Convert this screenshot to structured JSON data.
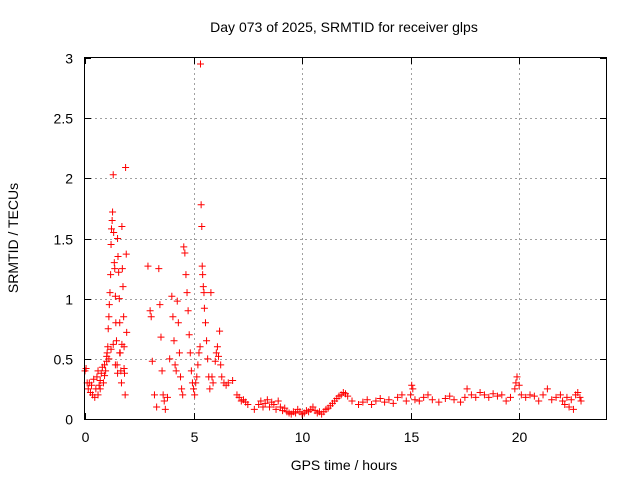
{
  "chart_data": {
    "type": "scatter",
    "title": "Day 073 of 2025, SRMTID for receiver glps",
    "xlabel": "GPS time / hours",
    "ylabel": "SRMTID / TECUs",
    "xlim": [
      0,
      24
    ],
    "ylim": [
      0,
      3
    ],
    "xticks": [
      0,
      5,
      10,
      15,
      20
    ],
    "xtick_labels": [
      "0",
      "5",
      "10",
      "15",
      "20"
    ],
    "yticks": [
      0,
      0.5,
      1,
      1.5,
      2,
      2.5,
      3
    ],
    "ytick_labels": [
      "0",
      "0.5",
      "1",
      "1.5",
      "2",
      "2.5",
      "3"
    ],
    "grid": true,
    "marker": "+",
    "color": "#ff0000",
    "series": [
      {
        "name": "SRMTID",
        "points": [
          [
            0.0,
            0.4
          ],
          [
            0.05,
            0.42
          ],
          [
            0.1,
            0.3
          ],
          [
            0.15,
            0.25
          ],
          [
            0.2,
            0.3
          ],
          [
            0.25,
            0.22
          ],
          [
            0.3,
            0.28
          ],
          [
            0.35,
            0.2
          ],
          [
            0.4,
            0.33
          ],
          [
            0.45,
            0.18
          ],
          [
            0.5,
            0.25
          ],
          [
            0.55,
            0.35
          ],
          [
            0.6,
            0.4
          ],
          [
            0.65,
            0.28
          ],
          [
            0.7,
            0.32
          ],
          [
            0.75,
            0.38
          ],
          [
            0.8,
            0.43
          ],
          [
            0.85,
            0.3
          ],
          [
            0.9,
            0.36
          ],
          [
            0.95,
            0.4
          ],
          [
            1.0,
            0.48
          ],
          [
            1.02,
            0.55
          ],
          [
            1.05,
            0.6
          ],
          [
            1.07,
            0.75
          ],
          [
            1.1,
            0.85
          ],
          [
            1.12,
            0.95
          ],
          [
            1.15,
            1.05
          ],
          [
            1.18,
            1.2
          ],
          [
            1.2,
            1.45
          ],
          [
            1.22,
            1.58
          ],
          [
            1.25,
            1.65
          ],
          [
            1.27,
            1.72
          ],
          [
            1.3,
            2.03
          ],
          [
            1.32,
            1.55
          ],
          [
            1.35,
            1.3
          ],
          [
            1.37,
            1.25
          ],
          [
            1.4,
            1.02
          ],
          [
            1.42,
            0.8
          ],
          [
            1.45,
            0.65
          ],
          [
            1.48,
            0.45
          ],
          [
            1.5,
            1.5
          ],
          [
            1.52,
            1.35
          ],
          [
            1.55,
            1.22
          ],
          [
            1.58,
            1.0
          ],
          [
            1.6,
            0.8
          ],
          [
            1.62,
            0.55
          ],
          [
            1.65,
            0.4
          ],
          [
            1.68,
            0.3
          ],
          [
            1.7,
            1.6
          ],
          [
            1.72,
            1.25
          ],
          [
            1.75,
            1.1
          ],
          [
            1.78,
            0.85
          ],
          [
            1.8,
            0.6
          ],
          [
            1.82,
            0.38
          ],
          [
            1.85,
            0.2
          ],
          [
            1.87,
            2.09
          ],
          [
            1.9,
            1.37
          ],
          [
            1.92,
            0.72
          ],
          [
            0.6,
            0.2
          ],
          [
            0.7,
            0.25
          ],
          [
            0.9,
            0.45
          ],
          [
            1.0,
            0.52
          ],
          [
            1.1,
            0.5
          ],
          [
            1.2,
            0.58
          ],
          [
            1.3,
            0.62
          ],
          [
            1.4,
            0.45
          ],
          [
            1.5,
            0.38
          ],
          [
            1.6,
            0.55
          ],
          [
            1.7,
            0.62
          ],
          [
            1.8,
            0.42
          ],
          [
            2.9,
            1.27
          ],
          [
            3.0,
            0.9
          ],
          [
            3.05,
            0.85
          ],
          [
            3.1,
            0.48
          ],
          [
            3.2,
            0.2
          ],
          [
            3.3,
            0.1
          ],
          [
            3.4,
            1.25
          ],
          [
            3.45,
            0.95
          ],
          [
            3.5,
            0.68
          ],
          [
            3.55,
            0.4
          ],
          [
            3.6,
            0.2
          ],
          [
            3.65,
            0.15
          ],
          [
            3.7,
            0.08
          ],
          [
            3.8,
            0.18
          ],
          [
            3.9,
            0.5
          ],
          [
            4.0,
            1.02
          ],
          [
            4.05,
            0.85
          ],
          [
            4.1,
            0.65
          ],
          [
            4.15,
            0.45
          ],
          [
            4.2,
            0.4
          ],
          [
            4.25,
            0.98
          ],
          [
            4.3,
            0.8
          ],
          [
            4.35,
            0.55
          ],
          [
            4.4,
            0.35
          ],
          [
            4.45,
            0.25
          ],
          [
            4.5,
            0.2
          ],
          [
            4.55,
            1.43
          ],
          [
            4.6,
            1.38
          ],
          [
            4.65,
            1.2
          ],
          [
            4.7,
            1.05
          ],
          [
            4.75,
            0.9
          ],
          [
            4.8,
            0.7
          ],
          [
            4.85,
            0.55
          ],
          [
            4.9,
            0.4
          ],
          [
            4.95,
            0.3
          ],
          [
            5.0,
            0.25
          ],
          [
            5.05,
            0.2
          ],
          [
            5.1,
            0.3
          ],
          [
            5.15,
            0.35
          ],
          [
            5.2,
            0.45
          ],
          [
            5.25,
            0.55
          ],
          [
            5.3,
            0.6
          ],
          [
            5.32,
            2.95
          ],
          [
            5.35,
            1.78
          ],
          [
            5.38,
            1.6
          ],
          [
            5.4,
            1.27
          ],
          [
            5.42,
            1.2
          ],
          [
            5.45,
            1.1
          ],
          [
            5.48,
            1.05
          ],
          [
            5.5,
            0.92
          ],
          [
            5.55,
            0.8
          ],
          [
            5.6,
            0.65
          ],
          [
            5.65,
            0.5
          ],
          [
            5.7,
            0.35
          ],
          [
            5.75,
            0.25
          ],
          [
            5.8,
            1.05
          ],
          [
            5.85,
            0.35
          ],
          [
            5.9,
            0.3
          ],
          [
            6.0,
            0.48
          ],
          [
            6.05,
            0.55
          ],
          [
            6.1,
            0.6
          ],
          [
            6.15,
            0.52
          ],
          [
            6.2,
            0.73
          ],
          [
            6.25,
            0.45
          ],
          [
            6.3,
            0.35
          ],
          [
            6.4,
            0.3
          ],
          [
            6.5,
            0.28
          ],
          [
            6.6,
            0.3
          ],
          [
            6.8,
            0.32
          ],
          [
            7.0,
            0.2
          ],
          [
            7.1,
            0.18
          ],
          [
            7.2,
            0.15
          ],
          [
            7.3,
            0.16
          ],
          [
            7.4,
            0.14
          ],
          [
            7.5,
            0.12
          ],
          [
            7.8,
            0.08
          ],
          [
            8.0,
            0.12
          ],
          [
            8.1,
            0.15
          ],
          [
            8.2,
            0.1
          ],
          [
            8.3,
            0.13
          ],
          [
            8.4,
            0.16
          ],
          [
            8.5,
            0.1
          ],
          [
            8.6,
            0.14
          ],
          [
            8.7,
            0.12
          ],
          [
            8.8,
            0.08
          ],
          [
            8.9,
            0.15
          ],
          [
            9.0,
            0.1
          ],
          [
            9.1,
            0.07
          ],
          [
            9.2,
            0.09
          ],
          [
            9.3,
            0.06
          ],
          [
            9.4,
            0.05
          ],
          [
            9.5,
            0.04
          ],
          [
            9.6,
            0.06
          ],
          [
            9.7,
            0.05
          ],
          [
            9.8,
            0.08
          ],
          [
            9.9,
            0.06
          ],
          [
            10.0,
            0.04
          ],
          [
            10.1,
            0.05
          ],
          [
            10.2,
            0.07
          ],
          [
            10.3,
            0.06
          ],
          [
            10.4,
            0.08
          ],
          [
            10.5,
            0.1
          ],
          [
            10.6,
            0.07
          ],
          [
            10.7,
            0.05
          ],
          [
            10.8,
            0.06
          ],
          [
            10.9,
            0.04
          ],
          [
            11.0,
            0.06
          ],
          [
            11.1,
            0.08
          ],
          [
            11.2,
            0.09
          ],
          [
            11.3,
            0.11
          ],
          [
            11.4,
            0.13
          ],
          [
            11.5,
            0.15
          ],
          [
            11.6,
            0.17
          ],
          [
            11.7,
            0.19
          ],
          [
            11.8,
            0.2
          ],
          [
            11.9,
            0.22
          ],
          [
            12.0,
            0.21
          ],
          [
            12.1,
            0.19
          ],
          [
            12.3,
            0.15
          ],
          [
            12.6,
            0.12
          ],
          [
            12.8,
            0.14
          ],
          [
            13.0,
            0.16
          ],
          [
            13.2,
            0.12
          ],
          [
            13.4,
            0.15
          ],
          [
            13.6,
            0.17
          ],
          [
            13.8,
            0.14
          ],
          [
            14.0,
            0.16
          ],
          [
            14.2,
            0.13
          ],
          [
            14.4,
            0.18
          ],
          [
            14.6,
            0.2
          ],
          [
            14.8,
            0.15
          ],
          [
            15.0,
            0.2
          ],
          [
            15.05,
            0.28
          ],
          [
            15.1,
            0.25
          ],
          [
            15.2,
            0.16
          ],
          [
            15.4,
            0.15
          ],
          [
            15.6,
            0.18
          ],
          [
            15.8,
            0.2
          ],
          [
            16.0,
            0.16
          ],
          [
            16.3,
            0.14
          ],
          [
            16.6,
            0.17
          ],
          [
            16.8,
            0.19
          ],
          [
            17.0,
            0.16
          ],
          [
            17.3,
            0.14
          ],
          [
            17.5,
            0.18
          ],
          [
            17.6,
            0.25
          ],
          [
            17.8,
            0.2
          ],
          [
            18.0,
            0.18
          ],
          [
            18.2,
            0.22
          ],
          [
            18.4,
            0.2
          ],
          [
            18.6,
            0.18
          ],
          [
            18.8,
            0.21
          ],
          [
            19.0,
            0.19
          ],
          [
            19.2,
            0.2
          ],
          [
            19.4,
            0.15
          ],
          [
            19.6,
            0.18
          ],
          [
            19.8,
            0.25
          ],
          [
            19.85,
            0.3
          ],
          [
            19.9,
            0.35
          ],
          [
            20.0,
            0.28
          ],
          [
            20.1,
            0.2
          ],
          [
            20.3,
            0.18
          ],
          [
            20.5,
            0.2
          ],
          [
            20.7,
            0.19
          ],
          [
            20.9,
            0.15
          ],
          [
            21.1,
            0.2
          ],
          [
            21.3,
            0.25
          ],
          [
            21.5,
            0.16
          ],
          [
            21.7,
            0.18
          ],
          [
            21.9,
            0.2
          ],
          [
            22.0,
            0.15
          ],
          [
            22.1,
            0.12
          ],
          [
            22.2,
            0.18
          ],
          [
            22.3,
            0.1
          ],
          [
            22.4,
            0.16
          ],
          [
            22.5,
            0.08
          ],
          [
            22.6,
            0.2
          ],
          [
            22.7,
            0.22
          ],
          [
            22.8,
            0.18
          ],
          [
            22.85,
            0.15
          ]
        ]
      }
    ]
  }
}
